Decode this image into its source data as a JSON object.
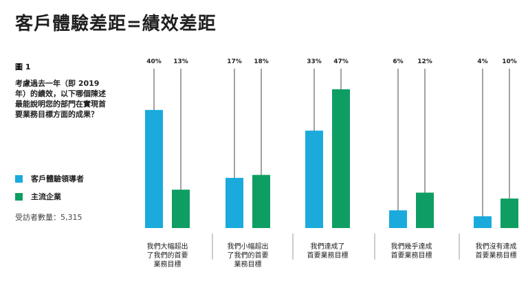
{
  "page": {
    "title": "客戶體驗差距=績效差距",
    "figure_label": "圖 1",
    "question": "考慮過去一年（即 2019 年）的績效，以下哪個陳述最能說明您的部門在實現首要業務目標方面的成果？",
    "respondents": "受訪者數量：5,315"
  },
  "chart_data": {
    "type": "bar",
    "categories": [
      [
        "我們大幅超出",
        "了我們的首要",
        "業務目標"
      ],
      [
        "我們小幅超出",
        "了我們的首要",
        "業務目標"
      ],
      [
        "我們達成了",
        "首要業務目標"
      ],
      [
        "我們幾乎達成",
        "首要業務目標"
      ],
      [
        "我們沒有達成",
        "首要業務目標"
      ]
    ],
    "series": [
      {
        "name": "客戶體驗領導者",
        "color": "#1aabdc",
        "values": [
          40,
          17,
          33,
          6,
          4
        ],
        "labels": [
          "40%",
          "17%",
          "33%",
          "6%",
          "4%"
        ]
      },
      {
        "name": "主流企業",
        "color": "#0e9e63",
        "values": [
          13,
          18,
          47,
          12,
          10
        ],
        "labels": [
          "13%",
          "18%",
          "47%",
          "12%",
          "10%"
        ]
      }
    ],
    "ylim": [
      0,
      47
    ],
    "grid": false,
    "legend_placement": "left"
  }
}
